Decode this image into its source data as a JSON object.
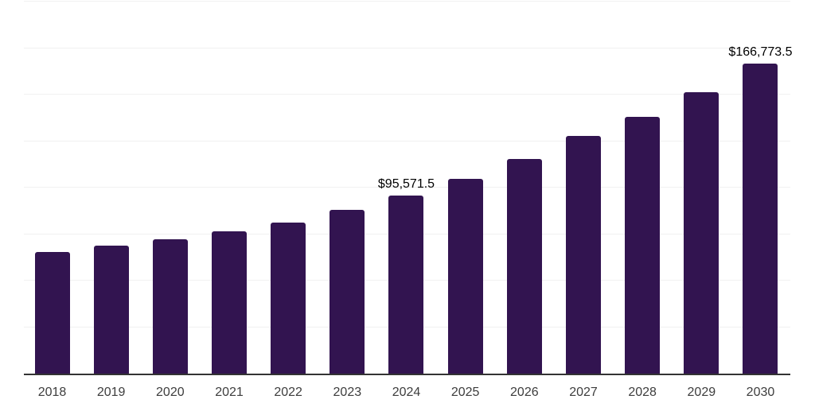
{
  "chart_data": {
    "type": "bar",
    "title": "",
    "categories": [
      "2018",
      "2019",
      "2020",
      "2021",
      "2022",
      "2023",
      "2024",
      "2025",
      "2026",
      "2027",
      "2028",
      "2029",
      "2030"
    ],
    "values": [
      65400,
      69000,
      72100,
      76300,
      81400,
      88200,
      95571.5,
      104900,
      115600,
      127600,
      138000,
      151200,
      166773.5
    ],
    "annotations": [
      {
        "category": "2024",
        "text": "$95,571.5"
      },
      {
        "category": "2030",
        "text": "$166,773.5"
      }
    ],
    "xlabel": "",
    "ylabel": "",
    "ylim": [
      0,
      200000
    ],
    "gridline_step": 25000,
    "grid": true,
    "legend": "none",
    "colors": {
      "bar": "#321450",
      "axis": "#333333",
      "gridline": "#f1f1f1",
      "tick_label": "#3d3d3d",
      "annotation_text": "#000000",
      "background": "#ffffff"
    }
  }
}
